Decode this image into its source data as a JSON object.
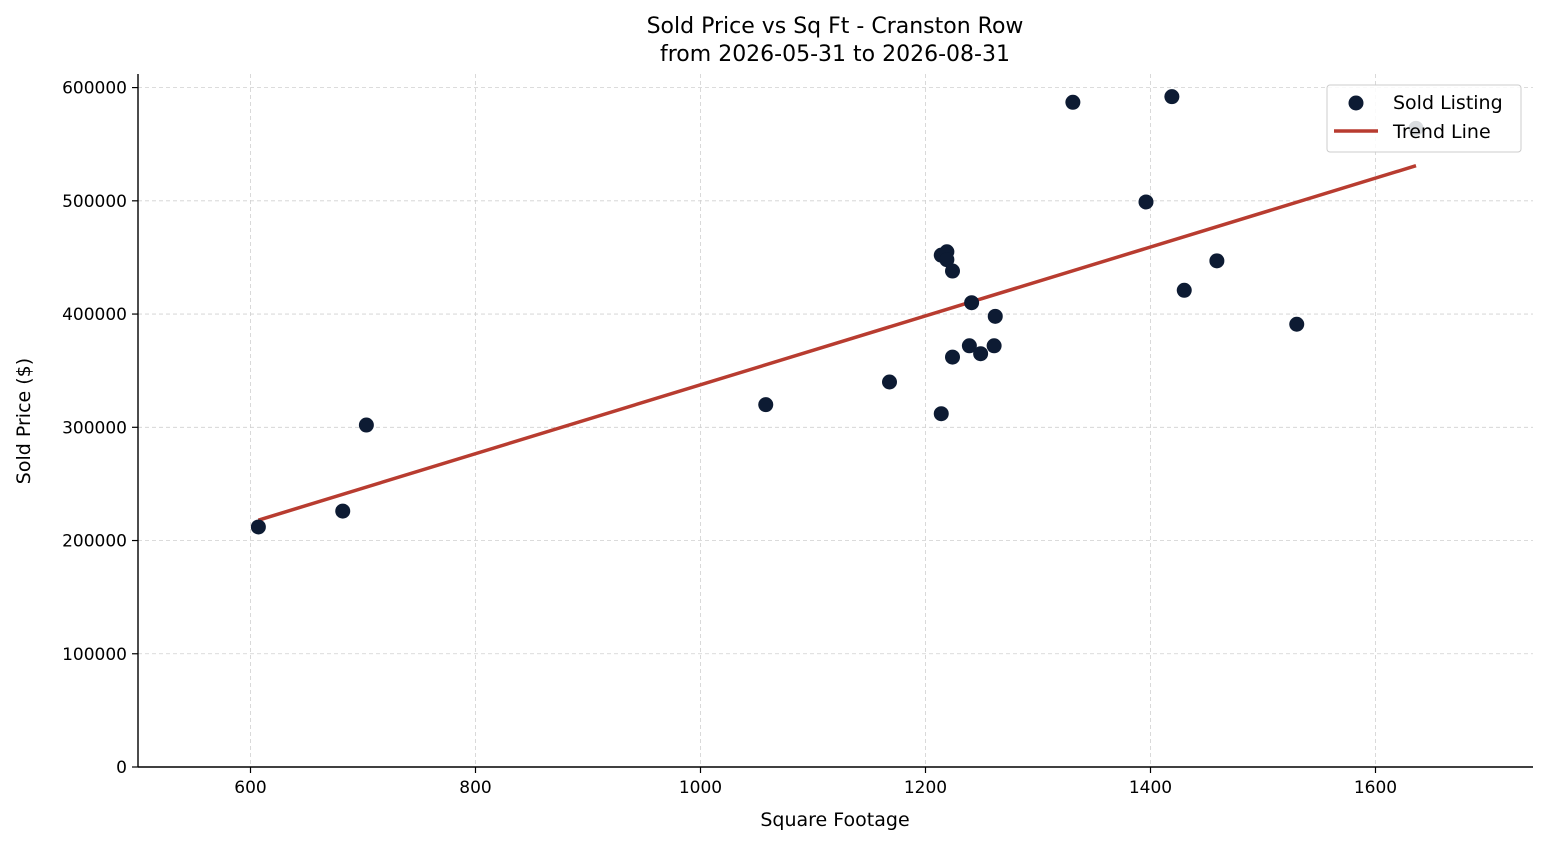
{
  "chart_data": {
    "type": "scatter",
    "title": "Sold Price vs Sq Ft - Cranston Row",
    "subtitle": "from 2026-05-31 to 2026-08-31",
    "xlabel": "Square Footage",
    "ylabel": "Sold Price ($)",
    "xlim": [
      500,
      1740
    ],
    "ylim": [
      0,
      612000
    ],
    "xticks": [
      600,
      800,
      1000,
      1200,
      1400,
      1600
    ],
    "yticks": [
      0,
      100000,
      200000,
      300000,
      400000,
      500000,
      600000
    ],
    "grid": true,
    "legend_position": "top-right",
    "series": [
      {
        "name": "Sold Listing",
        "kind": "scatter",
        "color": "#0d1b33",
        "points": [
          {
            "x": 607,
            "y": 212000
          },
          {
            "x": 682,
            "y": 226000
          },
          {
            "x": 703,
            "y": 302000
          },
          {
            "x": 1058,
            "y": 320000
          },
          {
            "x": 1168,
            "y": 340000
          },
          {
            "x": 1214,
            "y": 312000
          },
          {
            "x": 1214,
            "y": 452000
          },
          {
            "x": 1219,
            "y": 455000
          },
          {
            "x": 1219,
            "y": 448000
          },
          {
            "x": 1224,
            "y": 438000
          },
          {
            "x": 1224,
            "y": 362000
          },
          {
            "x": 1239,
            "y": 372000
          },
          {
            "x": 1241,
            "y": 410000
          },
          {
            "x": 1249,
            "y": 365000
          },
          {
            "x": 1261,
            "y": 372000
          },
          {
            "x": 1262,
            "y": 398000
          },
          {
            "x": 1331,
            "y": 587000
          },
          {
            "x": 1396,
            "y": 499000
          },
          {
            "x": 1419,
            "y": 592000
          },
          {
            "x": 1430,
            "y": 421000
          },
          {
            "x": 1459,
            "y": 447000
          },
          {
            "x": 1530,
            "y": 391000
          },
          {
            "x": 1636,
            "y": 564000
          }
        ]
      },
      {
        "name": "Trend Line",
        "kind": "line",
        "color": "#b83c30",
        "points": [
          {
            "x": 607,
            "y": 218000
          },
          {
            "x": 1636,
            "y": 531000
          }
        ]
      }
    ]
  }
}
